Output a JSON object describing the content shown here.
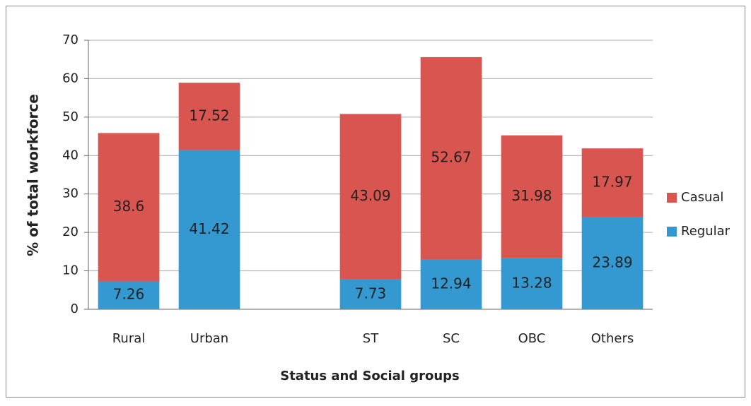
{
  "chart_data": {
    "type": "stacked_bar",
    "y_label": "% of total workforce",
    "x_label": "Status and Social groups",
    "categories": [
      "Rural",
      "Urban",
      null,
      "ST",
      "SC",
      "OBC",
      "Others"
    ],
    "series": [
      {
        "name": "Regular",
        "color": "#3399d0",
        "values": [
          7.26,
          41.42,
          null,
          7.73,
          12.94,
          13.28,
          23.89
        ]
      },
      {
        "name": "Casual",
        "color": "#d95550",
        "values": [
          38.6,
          17.52,
          null,
          43.09,
          52.67,
          31.98,
          17.97
        ]
      }
    ],
    "ylim": [
      0,
      70
    ],
    "yticks": [
      0,
      10,
      20,
      30,
      40,
      50,
      60,
      70
    ],
    "grid": true,
    "legend": "right"
  }
}
